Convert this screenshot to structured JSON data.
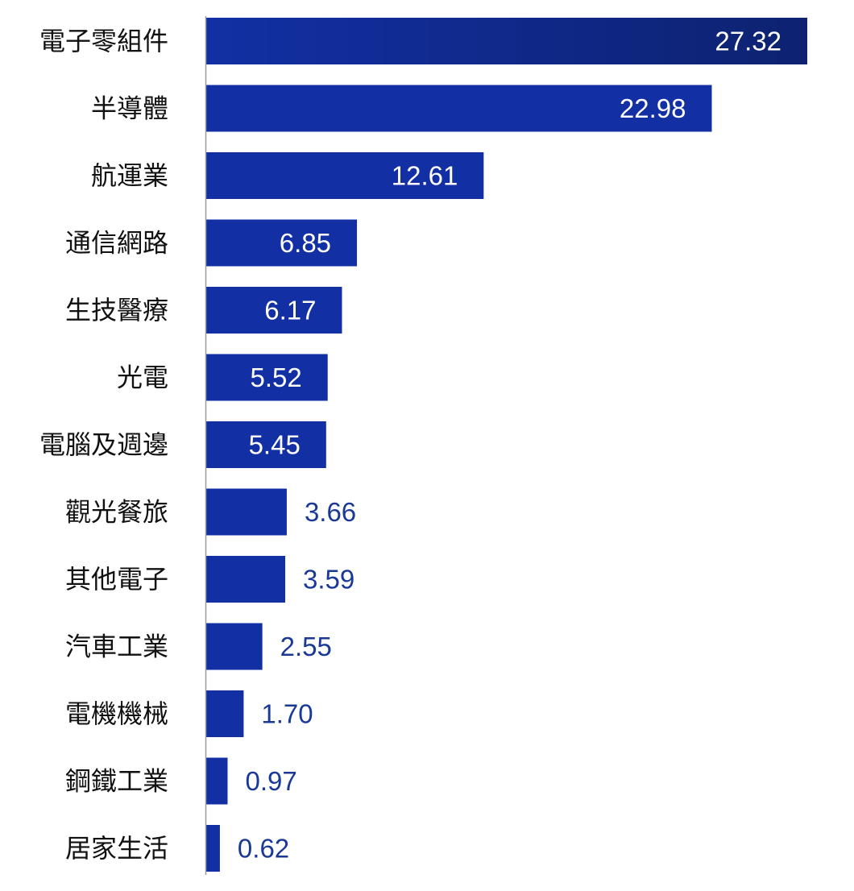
{
  "chart_data": {
    "type": "bar",
    "orientation": "horizontal",
    "title": "",
    "xlabel": "",
    "ylabel": "",
    "categories": [
      "電子零組件",
      "半導體",
      "航運業",
      "通信網路",
      "生技醫療",
      "光電",
      "電腦及週邊",
      "觀光餐旅",
      "其他電子",
      "汽車工業",
      "電機機械",
      "鋼鐵工業",
      "居家生活"
    ],
    "values_text": [
      "27.32",
      "22.98",
      "12.61",
      "6.85",
      "6.17",
      "5.52",
      "5.45",
      "3.66",
      "3.59",
      "2.55",
      "1.70",
      "0.97",
      "0.62"
    ],
    "xlim": [
      0,
      27.32
    ],
    "grid": false,
    "legend": "none",
    "colors": {
      "bar": "#1230a4",
      "bar_dark": "#0d2270",
      "value_inside": "#ffffff",
      "value_outside": "#1a3896",
      "axis": "#9a9a9a",
      "category_text": "#111111"
    }
  }
}
